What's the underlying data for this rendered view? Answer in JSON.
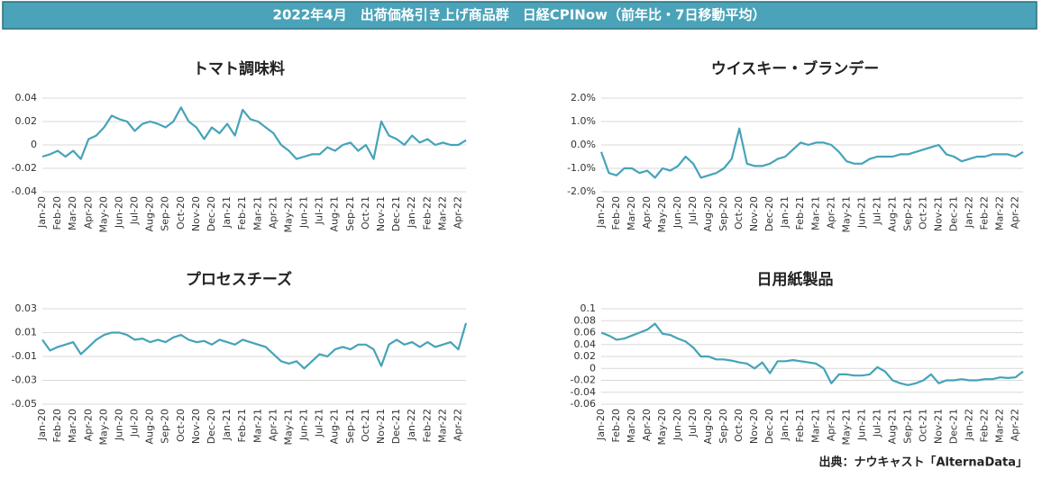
{
  "header": {
    "title": "2022年4月　出荷価格引き上げ商品群　日経CPINow（前年比・7日移動平均）"
  },
  "footer": {
    "source": "出典：ナウキャスト「AlternaData」"
  },
  "chart_data": [
    {
      "type": "line",
      "title": "トマト調味料",
      "color": "#45a3b9",
      "grid": true,
      "categories": [
        "Jan-20",
        null,
        "Feb-20",
        null,
        "Mar-20",
        null,
        "Apr-20",
        null,
        "May-20",
        null,
        "Jun-20",
        null,
        "Jul-20",
        null,
        "Aug-20",
        null,
        "Sep-20",
        null,
        "Oct-20",
        null,
        "Nov-20",
        null,
        "Dec-20",
        null,
        "Jan-21",
        null,
        "Feb-21",
        null,
        "Mar-21",
        null,
        "Apr-21",
        null,
        "May-21",
        null,
        "Jun-21",
        null,
        "Jul-21",
        null,
        "Aug-21",
        null,
        "Sep-21",
        null,
        "Oct-21",
        null,
        "Nov-21",
        null,
        "Dec-21",
        null,
        "Jan-22",
        null,
        "Feb-22",
        null,
        "Mar-22",
        null,
        "Apr-22",
        null
      ],
      "values": [
        -0.01,
        -0.008,
        -0.005,
        -0.01,
        -0.005,
        -0.012,
        0.005,
        0.008,
        0.015,
        0.025,
        0.022,
        0.02,
        0.012,
        0.018,
        0.02,
        0.018,
        0.015,
        0.02,
        0.032,
        0.02,
        0.015,
        0.005,
        0.015,
        0.01,
        0.018,
        0.008,
        0.03,
        0.022,
        0.02,
        0.015,
        0.01,
        0.0,
        -0.005,
        -0.012,
        -0.01,
        -0.008,
        -0.008,
        -0.002,
        -0.005,
        0.0,
        0.002,
        -0.005,
        0.0,
        -0.012,
        0.02,
        0.008,
        0.005,
        0.0,
        0.008,
        0.002,
        0.005,
        0.0,
        0.002,
        0.0,
        0.0,
        0.004
      ],
      "ylim": [
        -0.04,
        0.04
      ],
      "yticks": [
        -0.04,
        -0.02,
        0,
        0.02,
        0.04
      ]
    },
    {
      "type": "line",
      "title": "ウイスキー・ブランデー",
      "color": "#45a3b9",
      "grid": true,
      "categories": [
        "Jan-20",
        null,
        "Feb-20",
        null,
        "Mar-20",
        null,
        "Apr-20",
        null,
        "May-20",
        null,
        "Jun-20",
        null,
        "Jul-20",
        null,
        "Aug-20",
        null,
        "Sep-20",
        null,
        "Oct-20",
        null,
        "Nov-20",
        null,
        "Dec-20",
        null,
        "Jan-21",
        null,
        "Feb-21",
        null,
        "Mar-21",
        null,
        "Apr-21",
        null,
        "May-21",
        null,
        "Jun-21",
        null,
        "Jul-21",
        null,
        "Aug-21",
        null,
        "Sep-21",
        null,
        "Oct-21",
        null,
        "Nov-21",
        null,
        "Dec-21",
        null,
        "Jan-22",
        null,
        "Feb-22",
        null,
        "Mar-22",
        null,
        "Apr-22",
        null
      ],
      "values": [
        -0.3,
        -1.2,
        -1.3,
        -1.0,
        -1.0,
        -1.2,
        -1.1,
        -1.4,
        -1.0,
        -1.1,
        -0.9,
        -0.5,
        -0.8,
        -1.4,
        -1.3,
        -1.2,
        -1.0,
        -0.6,
        0.7,
        -0.8,
        -0.9,
        -0.9,
        -0.8,
        -0.6,
        -0.5,
        -0.2,
        0.1,
        0.0,
        0.1,
        0.1,
        0.0,
        -0.3,
        -0.7,
        -0.8,
        -0.8,
        -0.6,
        -0.5,
        -0.5,
        -0.5,
        -0.4,
        -0.4,
        -0.3,
        -0.2,
        -0.1,
        0.0,
        -0.4,
        -0.5,
        -0.7,
        -0.6,
        -0.5,
        -0.5,
        -0.4,
        -0.4,
        -0.4,
        -0.5,
        -0.3
      ],
      "ylim": [
        -2,
        2
      ],
      "yticks": [
        {
          "value": -2,
          "label": "-2.0%"
        },
        {
          "value": -1,
          "label": "-1.0%"
        },
        {
          "value": 0,
          "label": "0.0%"
        },
        {
          "value": 1,
          "label": "1.0%"
        },
        {
          "value": 2,
          "label": "2.0%"
        }
      ]
    },
    {
      "type": "line",
      "title": "プロセスチーズ",
      "color": "#45a3b9",
      "grid": true,
      "categories": [
        "Jan-20",
        null,
        "Feb-20",
        null,
        "Mar-20",
        null,
        "Apr-20",
        null,
        "May-20",
        null,
        "Jun-20",
        null,
        "Jul-20",
        null,
        "Aug-20",
        null,
        "Sep-20",
        null,
        "Oct-20",
        null,
        "Nov-20",
        null,
        "Dec-20",
        null,
        "Jan-21",
        null,
        "Feb-21",
        null,
        "Mar-21",
        null,
        "Apr-21",
        null,
        "May-21",
        null,
        "Jun-21",
        null,
        "Jul-21",
        null,
        "Aug-21",
        null,
        "Sep-21",
        null,
        "Oct-21",
        null,
        "Nov-21",
        null,
        "Dec-21",
        null,
        "Jan-22",
        null,
        "Feb-22",
        null,
        "Mar-22",
        null,
        "Apr-22",
        null
      ],
      "values": [
        0.004,
        -0.005,
        -0.002,
        0.0,
        0.002,
        -0.008,
        -0.002,
        0.004,
        0.008,
        0.01,
        0.01,
        0.008,
        0.004,
        0.005,
        0.002,
        0.004,
        0.002,
        0.006,
        0.008,
        0.004,
        0.002,
        0.003,
        0.0,
        0.004,
        0.002,
        0.0,
        0.004,
        0.002,
        0.0,
        -0.002,
        -0.008,
        -0.014,
        -0.016,
        -0.014,
        -0.02,
        -0.014,
        -0.008,
        -0.01,
        -0.004,
        -0.002,
        -0.004,
        0.0,
        0.0,
        -0.004,
        -0.018,
        0.0,
        0.004,
        0.0,
        0.002,
        -0.002,
        0.002,
        -0.002,
        0.0,
        0.002,
        -0.004,
        0.018
      ],
      "ylim": [
        -0.05,
        0.03
      ],
      "yticks": [
        -0.05,
        -0.03,
        -0.01,
        0.01,
        0.03
      ]
    },
    {
      "type": "line",
      "title": "日用紙製品",
      "color": "#45a3b9",
      "grid": true,
      "categories": [
        "Jan-20",
        null,
        "Feb-20",
        null,
        "Mar-20",
        null,
        "Apr-20",
        null,
        "May-20",
        null,
        "Jun-20",
        null,
        "Jul-20",
        null,
        "Aug-20",
        null,
        "Sep-20",
        null,
        "Oct-20",
        null,
        "Nov-20",
        null,
        "Dec-20",
        null,
        "Jan-21",
        null,
        "Feb-21",
        null,
        "Mar-21",
        null,
        "Apr-21",
        null,
        "May-21",
        null,
        "Jun-21",
        null,
        "Jul-21",
        null,
        "Aug-21",
        null,
        "Sep-21",
        null,
        "Oct-21",
        null,
        "Nov-21",
        null,
        "Dec-21",
        null,
        "Jan-22",
        null,
        "Feb-22",
        null,
        "Mar-22",
        null,
        "Apr-22",
        null
      ],
      "values": [
        0.06,
        0.055,
        0.048,
        0.05,
        0.055,
        0.06,
        0.065,
        0.075,
        0.058,
        0.056,
        0.05,
        0.045,
        0.035,
        0.02,
        0.02,
        0.015,
        0.015,
        0.013,
        0.01,
        0.008,
        0.0,
        0.01,
        -0.008,
        0.012,
        0.012,
        0.014,
        0.012,
        0.01,
        0.008,
        0.0,
        -0.025,
        -0.01,
        -0.01,
        -0.012,
        -0.012,
        -0.01,
        0.002,
        -0.005,
        -0.02,
        -0.025,
        -0.028,
        -0.025,
        -0.02,
        -0.01,
        -0.025,
        -0.02,
        -0.02,
        -0.018,
        -0.02,
        -0.02,
        -0.018,
        -0.018,
        -0.015,
        -0.016,
        -0.015,
        -0.005
      ],
      "ylim": [
        -0.06,
        0.1
      ],
      "yticks": [
        -0.06,
        -0.04,
        -0.02,
        0,
        0.02,
        0.04,
        0.06,
        0.08,
        0.1
      ]
    }
  ]
}
